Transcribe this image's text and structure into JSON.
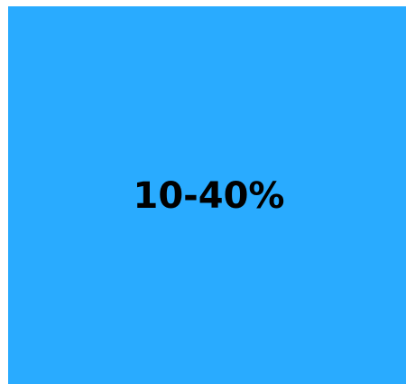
{
  "tile": {
    "label": "10-40%"
  }
}
